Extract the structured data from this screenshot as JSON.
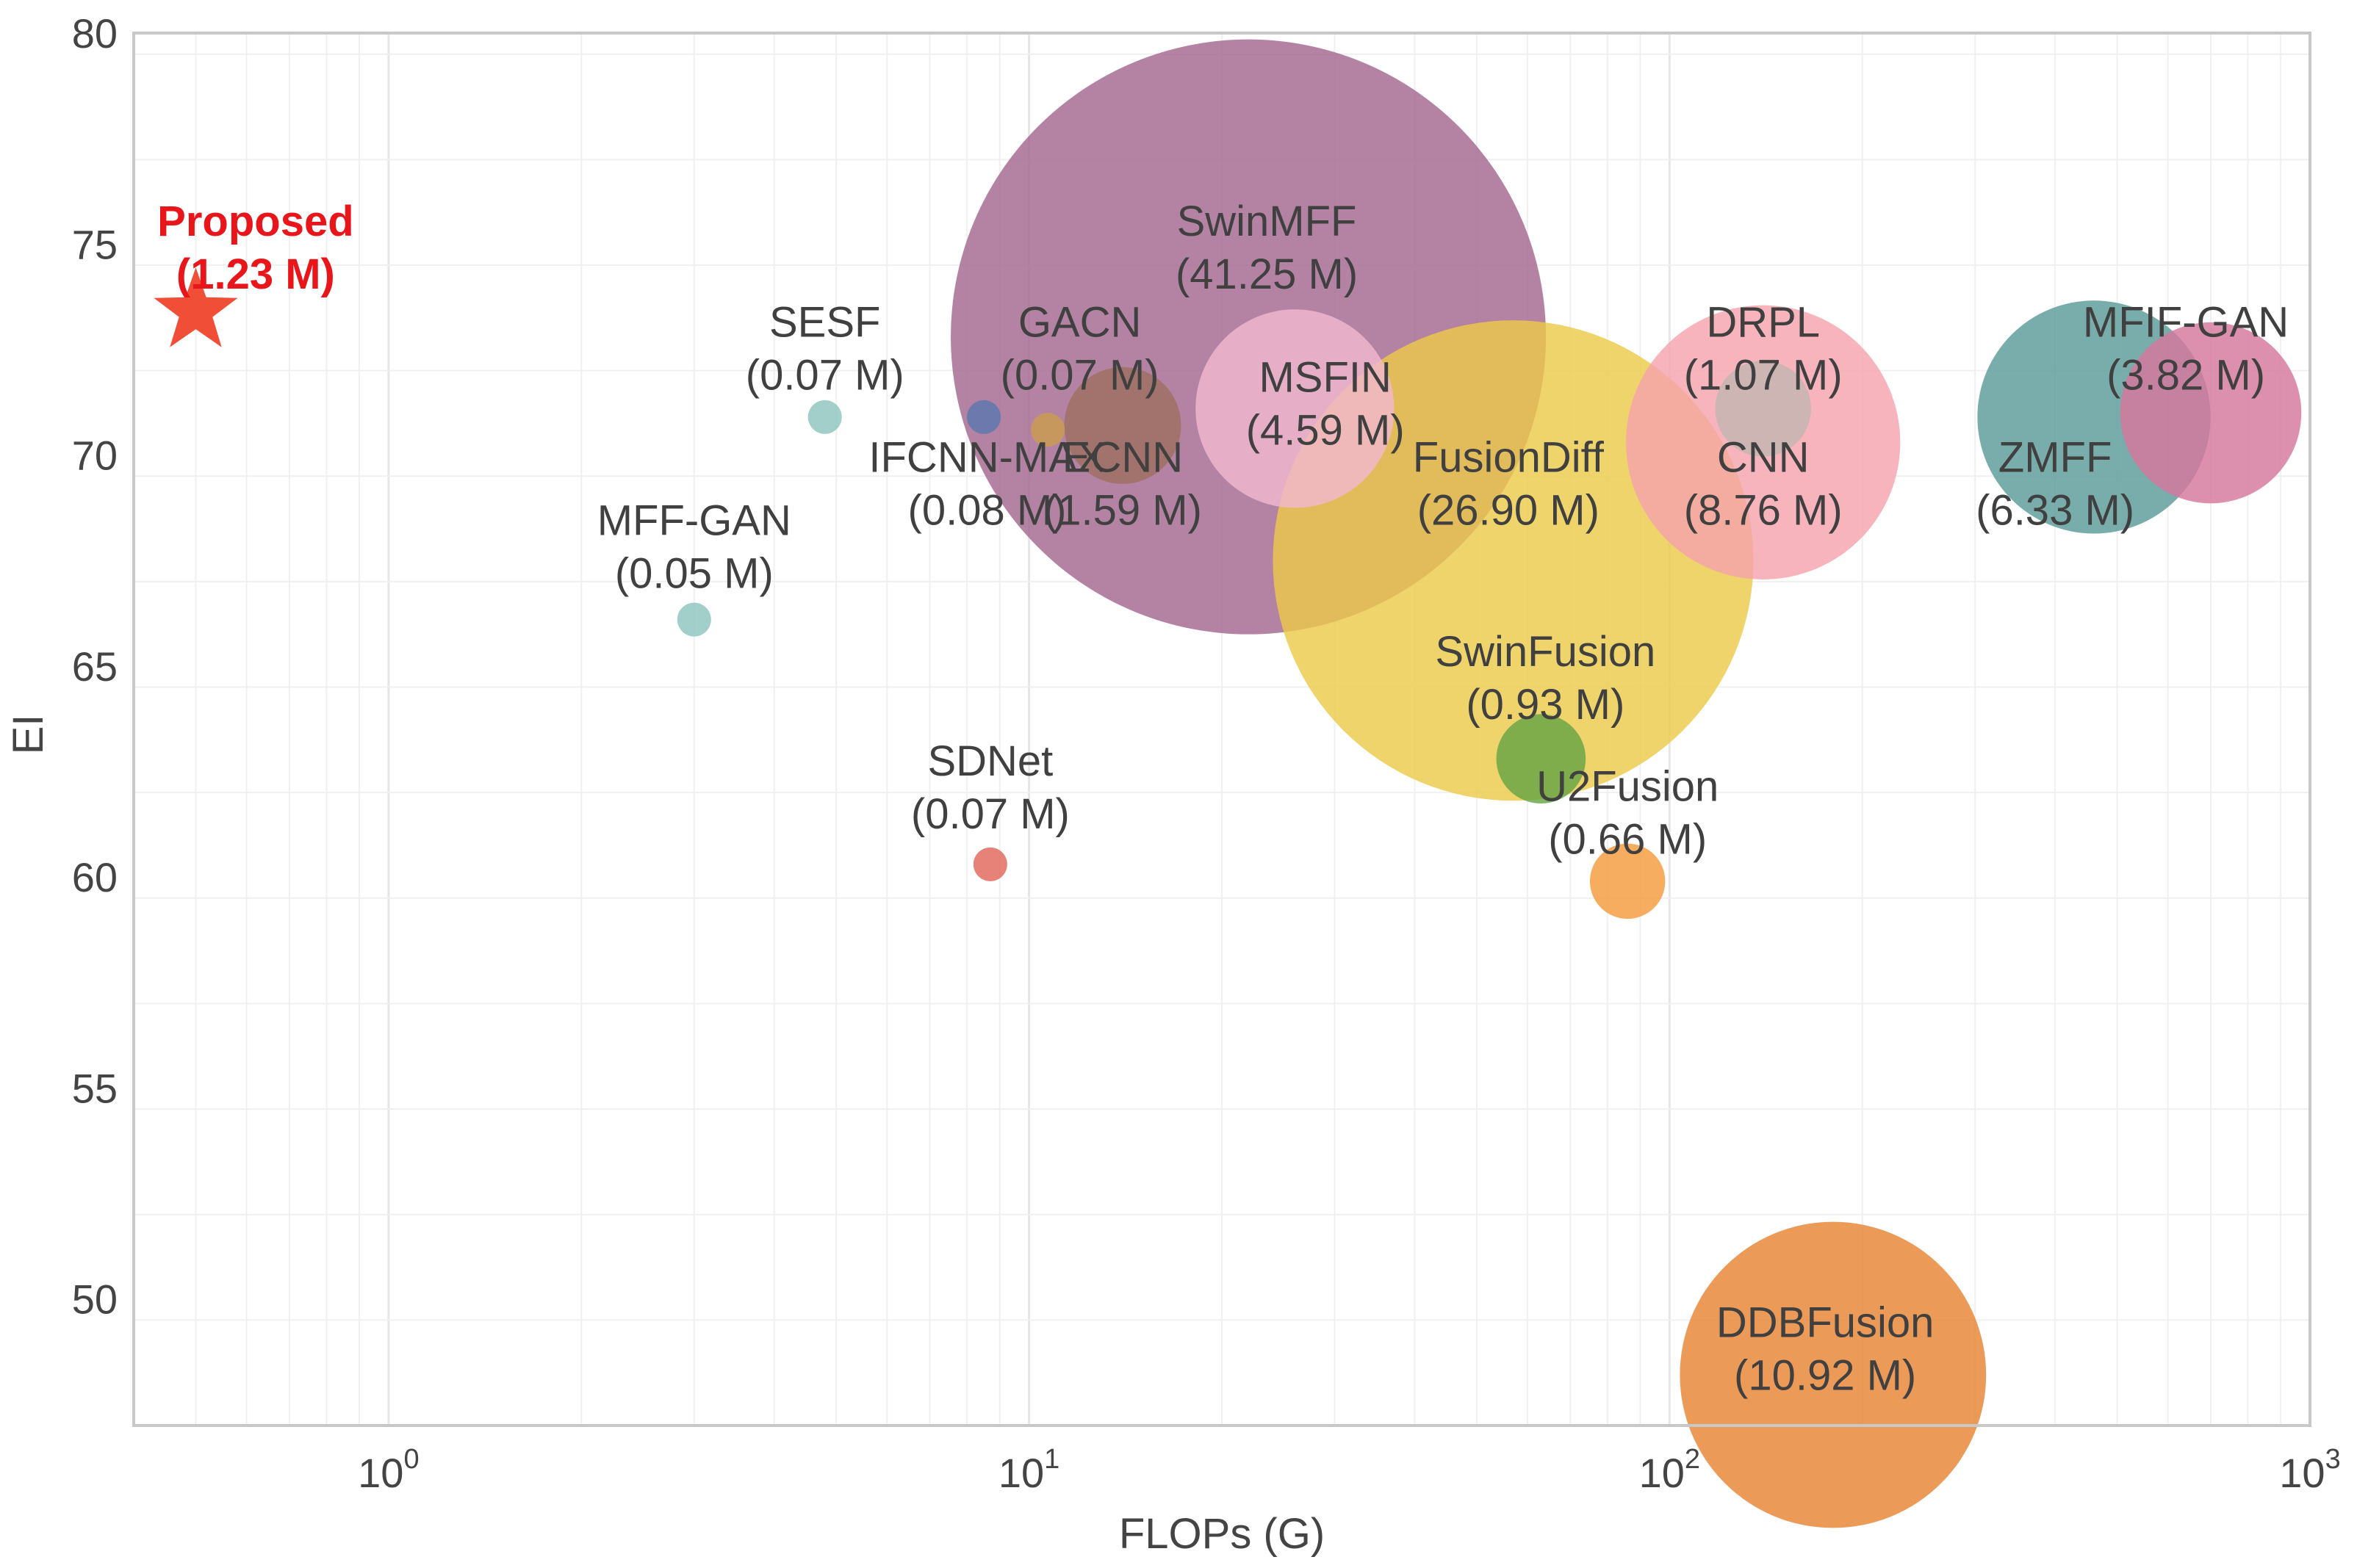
{
  "chart_data": {
    "type": "scatter",
    "xlabel": "FLOPs (G)",
    "ylabel": "EI",
    "xscale": "log",
    "xlim": [
      0.4,
      1000
    ],
    "ylim": [
      47,
      80
    ],
    "grid": true,
    "x_tick_labels": [
      {
        "value": 1,
        "base": "10",
        "exp": "0"
      },
      {
        "value": 10,
        "base": "10",
        "exp": "1"
      },
      {
        "value": 100,
        "base": "10",
        "exp": "2"
      },
      {
        "value": 1000,
        "base": "10",
        "exp": "3"
      }
    ],
    "y_ticks": [
      50,
      55,
      60,
      65,
      70,
      75,
      80
    ],
    "y_tick_labels": [
      "50",
      "55",
      "60",
      "65",
      "70",
      "75",
      "80"
    ],
    "points": [
      {
        "name": "SwinMFF",
        "params_label": "(41.25 M)",
        "params": 41.25,
        "flops": 22,
        "ei": 72.8,
        "color": "#a3678f",
        "label_flops": 23.5,
        "label_ei": 75.2
      },
      {
        "name": "FusionDiff",
        "params_label": "(26.90 M)",
        "params": 26.9,
        "flops": 57,
        "ei": 67.5,
        "color": "#ecc94b",
        "label_flops": 56,
        "label_ei": 69.6
      },
      {
        "name": "DDBFusion",
        "params_label": "(10.92 M)",
        "params": 10.92,
        "flops": 180,
        "ei": 48.2,
        "color": "#e68433",
        "label_flops": 175,
        "label_ei": 49.1
      },
      {
        "name": "CNN",
        "params_label": "(8.76 M)",
        "params": 8.76,
        "flops": 140,
        "ei": 70.3,
        "color": "#f5a3ad",
        "label_flops": 140,
        "label_ei": 69.6
      },
      {
        "name": "ZMFF",
        "params_label": "(6.33 M)",
        "params": 6.33,
        "flops": 460,
        "ei": 70.9,
        "color": "#5c9b98",
        "label_flops": 400,
        "label_ei": 69.6
      },
      {
        "name": "MSFIN",
        "params_label": "(4.59 M)",
        "params": 4.59,
        "flops": 26,
        "ei": 71.1,
        "color": "#f2b8d0",
        "label_flops": 29,
        "label_ei": 71.5
      },
      {
        "name": "MFIF-GAN",
        "params_label": "(3.82 M)",
        "params": 3.82,
        "flops": 700,
        "ei": 71.0,
        "color": "#d6779c",
        "label_flops": 640,
        "label_ei": 72.8
      },
      {
        "name": "ECNN",
        "params_label": "(1.59 M)",
        "params": 1.59,
        "flops": 14,
        "ei": 70.7,
        "color": "#9e7060",
        "label_flops": 14,
        "label_ei": 69.6
      },
      {
        "name": "DRPL",
        "params_label": "(1.07 M)",
        "params": 1.07,
        "flops": 140,
        "ei": 71.1,
        "color": "#c2b5b1",
        "label_flops": 140,
        "label_ei": 72.8
      },
      {
        "name": "SwinFusion",
        "params_label": "(0.93 M)",
        "params": 0.93,
        "flops": 63,
        "ei": 62.8,
        "color": "#67a544",
        "label_flops": 64,
        "label_ei": 65.0
      },
      {
        "name": "U2Fusion",
        "params_label": "(0.66 M)",
        "params": 0.66,
        "flops": 86,
        "ei": 59.9,
        "color": "#f59b3c",
        "label_flops": 86,
        "label_ei": 61.8
      },
      {
        "name": "IFCNN-MAX",
        "params_label": "(0.08 M)",
        "params": 0.08,
        "flops": 10.7,
        "ei": 70.6,
        "color": "#c99e4f",
        "label_flops": 8.6,
        "label_ei": 69.6
      },
      {
        "name": "GACN",
        "params_label": "(0.07 M)",
        "params": 0.07,
        "flops": 8.5,
        "ei": 70.9,
        "color": "#5a78b0",
        "label_flops": 12,
        "label_ei": 72.8
      },
      {
        "name": "SESF",
        "params_label": "(0.07 M)",
        "params": 0.07,
        "flops": 4.8,
        "ei": 70.9,
        "color": "#8fc4bf",
        "label_flops": 4.8,
        "label_ei": 72.8
      },
      {
        "name": "SDNet",
        "params_label": "(0.07 M)",
        "params": 0.07,
        "flops": 8.7,
        "ei": 60.3,
        "color": "#e0665a",
        "label_flops": 8.7,
        "label_ei": 62.4
      },
      {
        "name": "MFF-GAN",
        "params_label": "(0.05 M)",
        "params": 0.05,
        "flops": 3.0,
        "ei": 66.1,
        "color": "#8fc4bf",
        "label_flops": 3.0,
        "label_ei": 68.1
      }
    ],
    "highlight": {
      "name": "Proposed",
      "params_label": "(1.23 M)",
      "params": 1.23,
      "flops": 0.5,
      "ei": 73.4,
      "color": "#f04e37",
      "text_color": "#e8161b",
      "marker": "star",
      "label_flops": 0.62,
      "label_ei": 75.2
    }
  }
}
